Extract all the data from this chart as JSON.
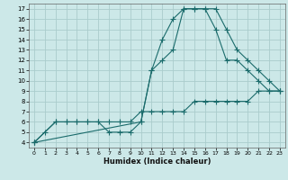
{
  "xlabel": "Humidex (Indice chaleur)",
  "bg_color": "#cce8e8",
  "grid_color": "#aacccc",
  "line_color": "#1a6b6b",
  "xlim": [
    -0.5,
    23.5
  ],
  "ylim": [
    3.5,
    17.5
  ],
  "xticks": [
    0,
    1,
    2,
    3,
    4,
    5,
    6,
    7,
    8,
    9,
    10,
    11,
    12,
    13,
    14,
    15,
    16,
    17,
    18,
    19,
    20,
    21,
    22,
    23
  ],
  "yticks": [
    4,
    5,
    6,
    7,
    8,
    9,
    10,
    11,
    12,
    13,
    14,
    15,
    16,
    17
  ],
  "line1_x": [
    0,
    1,
    2,
    3,
    4,
    5,
    6,
    7,
    8,
    9,
    10,
    11,
    12,
    13,
    14,
    15,
    16,
    17,
    18,
    19,
    20,
    21,
    22,
    23
  ],
  "line1_y": [
    4,
    5,
    6,
    6,
    6,
    6,
    6,
    6,
    6,
    6,
    7,
    7,
    7,
    7,
    7,
    8,
    8,
    8,
    8,
    8,
    8,
    9,
    9,
    9
  ],
  "line2_x": [
    0,
    2,
    3,
    4,
    5,
    6,
    7,
    8,
    9,
    10,
    11,
    12,
    13,
    14,
    15,
    16,
    17,
    18,
    19,
    20,
    21,
    22,
    23
  ],
  "line2_y": [
    4,
    6,
    6,
    6,
    6,
    6,
    5,
    5,
    5,
    6,
    11,
    12,
    13,
    17,
    17,
    17,
    15,
    12,
    12,
    11,
    10,
    9,
    9
  ],
  "line3_x": [
    0,
    10,
    11,
    12,
    13,
    14,
    15,
    16,
    17,
    18,
    19,
    20,
    21,
    22,
    23
  ],
  "line3_y": [
    4,
    6,
    11,
    14,
    16,
    17,
    17,
    17,
    17,
    15,
    13,
    12,
    11,
    10,
    9
  ]
}
